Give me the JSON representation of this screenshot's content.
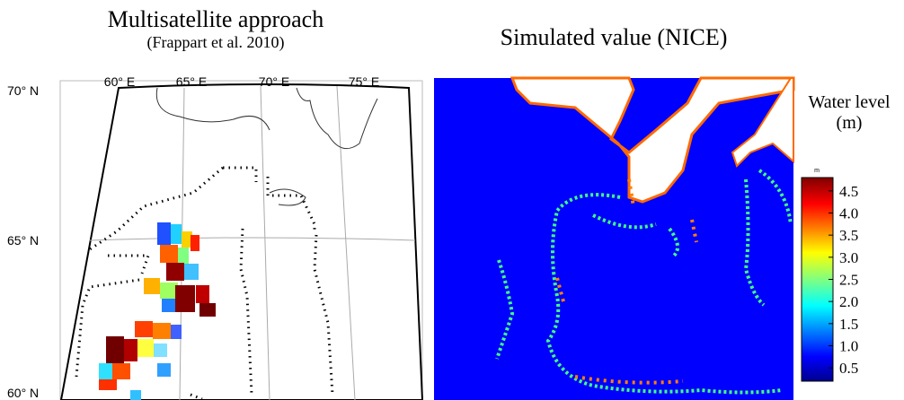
{
  "left_panel": {
    "title": "Multisatellite approach",
    "subtitle": "(Frappart et al. 2010)",
    "lat_labels": [
      "70° N",
      "65° N",
      "60° N"
    ],
    "lon_labels": [
      "60° E",
      "65° E",
      "70° E",
      "75° E"
    ]
  },
  "right_panel": {
    "title": "Simulated value (NICE)"
  },
  "colorbar": {
    "title": "Water level",
    "unit": "(m)",
    "unit_small": "m",
    "range": [
      0.2,
      4.8
    ],
    "ticks": [
      0.5,
      {
        "value": 1,
        "label": "1.0"
      },
      1.5,
      {
        "value": 2,
        "label": "2.0"
      },
      2.5,
      {
        "value": 3,
        "label": "3.0"
      },
      3.5,
      {
        "value": 4,
        "label": "4.0"
      },
      4.5
    ]
  }
}
